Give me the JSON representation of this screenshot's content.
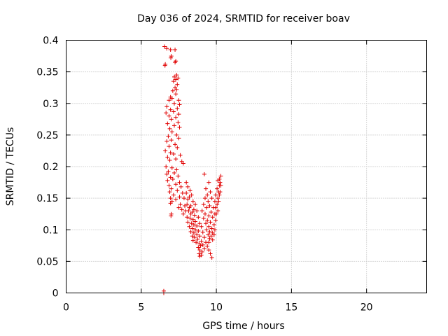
{
  "chart_data": {
    "type": "scatter",
    "title": "Day 036 of 2024, SRMTID for receiver boav",
    "xlabel": "GPS time / hours",
    "ylabel": "SRMTID / TECUs",
    "xlim": [
      0,
      24
    ],
    "ylim": [
      0,
      0.4
    ],
    "xticks": [
      0,
      5,
      10,
      15,
      20
    ],
    "xtick_labels": [
      "0",
      "5",
      "10",
      "15",
      "20"
    ],
    "yticks": [
      0,
      0.05,
      0.1,
      0.15,
      0.2,
      0.25,
      0.3,
      0.35,
      0.4
    ],
    "ytick_labels": [
      "0",
      "0.05",
      "0.1",
      "0.15",
      "0.2",
      "0.25",
      "0.3",
      "0.35",
      "0.4"
    ],
    "grid": true,
    "marker": "+",
    "color": "#e00000",
    "series": [
      {
        "name": "SRMTID",
        "points": [
          [
            6.5,
            0.0
          ],
          [
            6.5,
            0.003
          ],
          [
            6.55,
            0.39
          ],
          [
            6.7,
            0.387
          ],
          [
            6.95,
            0.385
          ],
          [
            7.25,
            0.385
          ],
          [
            7.0,
            0.375
          ],
          [
            6.97,
            0.372
          ],
          [
            7.3,
            0.367
          ],
          [
            7.25,
            0.365
          ],
          [
            6.6,
            0.362
          ],
          [
            6.58,
            0.36
          ],
          [
            7.35,
            0.345
          ],
          [
            7.2,
            0.342
          ],
          [
            7.45,
            0.34
          ],
          [
            7.3,
            0.338
          ],
          [
            7.15,
            0.335
          ],
          [
            7.4,
            0.33
          ],
          [
            7.25,
            0.325
          ],
          [
            7.35,
            0.322
          ],
          [
            7.1,
            0.32
          ],
          [
            7.3,
            0.315
          ],
          [
            6.95,
            0.31
          ],
          [
            7.05,
            0.308
          ],
          [
            6.85,
            0.305
          ],
          [
            7.5,
            0.305
          ],
          [
            7.2,
            0.3
          ],
          [
            7.55,
            0.298
          ],
          [
            6.7,
            0.295
          ],
          [
            7.4,
            0.292
          ],
          [
            6.95,
            0.29
          ],
          [
            7.15,
            0.287
          ],
          [
            6.65,
            0.285
          ],
          [
            7.5,
            0.283
          ],
          [
            6.85,
            0.28
          ],
          [
            7.3,
            0.278
          ],
          [
            7.0,
            0.275
          ],
          [
            7.45,
            0.27
          ],
          [
            6.75,
            0.268
          ],
          [
            7.2,
            0.265
          ],
          [
            7.55,
            0.262
          ],
          [
            6.9,
            0.26
          ],
          [
            7.05,
            0.255
          ],
          [
            7.35,
            0.25
          ],
          [
            6.8,
            0.248
          ],
          [
            7.5,
            0.245
          ],
          [
            7.0,
            0.242
          ],
          [
            6.7,
            0.24
          ],
          [
            7.25,
            0.235
          ],
          [
            6.85,
            0.232
          ],
          [
            7.4,
            0.23
          ],
          [
            6.6,
            0.225
          ],
          [
            6.95,
            0.222
          ],
          [
            7.15,
            0.22
          ],
          [
            7.6,
            0.218
          ],
          [
            6.75,
            0.215
          ],
          [
            7.3,
            0.212
          ],
          [
            6.9,
            0.21
          ],
          [
            7.7,
            0.208
          ],
          [
            7.8,
            0.205
          ],
          [
            6.65,
            0.2
          ],
          [
            7.05,
            0.198
          ],
          [
            7.35,
            0.195
          ],
          [
            6.8,
            0.192
          ],
          [
            7.2,
            0.19
          ],
          [
            6.7,
            0.188
          ],
          [
            7.45,
            0.185
          ],
          [
            6.95,
            0.183
          ],
          [
            7.1,
            0.18
          ],
          [
            6.75,
            0.178
          ],
          [
            7.55,
            0.175
          ],
          [
            7.3,
            0.172
          ],
          [
            6.85,
            0.17
          ],
          [
            7.65,
            0.168
          ],
          [
            7.0,
            0.165
          ],
          [
            7.4,
            0.162
          ],
          [
            6.9,
            0.16
          ],
          [
            7.75,
            0.158
          ],
          [
            7.15,
            0.155
          ],
          [
            7.55,
            0.152
          ],
          [
            6.95,
            0.15
          ],
          [
            7.85,
            0.15
          ],
          [
            7.3,
            0.148
          ],
          [
            7.05,
            0.145
          ],
          [
            6.95,
            0.142
          ],
          [
            7.6,
            0.14
          ],
          [
            7.9,
            0.138
          ],
          [
            7.5,
            0.135
          ],
          [
            7.7,
            0.132
          ],
          [
            7.95,
            0.13
          ],
          [
            7.0,
            0.125
          ],
          [
            6.98,
            0.122
          ],
          [
            7.8,
            0.125
          ],
          [
            8.0,
            0.175
          ],
          [
            8.1,
            0.168
          ],
          [
            8.25,
            0.162
          ],
          [
            8.0,
            0.158
          ],
          [
            8.2,
            0.152
          ],
          [
            8.35,
            0.155
          ],
          [
            8.1,
            0.148
          ],
          [
            8.45,
            0.145
          ],
          [
            8.05,
            0.14
          ],
          [
            8.3,
            0.138
          ],
          [
            8.6,
            0.14
          ],
          [
            8.2,
            0.135
          ],
          [
            8.5,
            0.132
          ],
          [
            8.15,
            0.13
          ],
          [
            8.4,
            0.128
          ],
          [
            8.7,
            0.13
          ],
          [
            8.3,
            0.125
          ],
          [
            8.55,
            0.123
          ],
          [
            8.05,
            0.12
          ],
          [
            8.25,
            0.118
          ],
          [
            8.8,
            0.12
          ],
          [
            8.45,
            0.116
          ],
          [
            8.6,
            0.113
          ],
          [
            8.1,
            0.112
          ],
          [
            8.35,
            0.11
          ],
          [
            8.9,
            0.11
          ],
          [
            8.5,
            0.108
          ],
          [
            8.7,
            0.106
          ],
          [
            8.2,
            0.105
          ],
          [
            8.4,
            0.102
          ],
          [
            9.0,
            0.105
          ],
          [
            8.6,
            0.1
          ],
          [
            8.8,
            0.098
          ],
          [
            8.3,
            0.097
          ],
          [
            8.5,
            0.095
          ],
          [
            9.1,
            0.096
          ],
          [
            8.7,
            0.093
          ],
          [
            8.4,
            0.09
          ],
          [
            8.9,
            0.09
          ],
          [
            8.55,
            0.088
          ],
          [
            9.2,
            0.088
          ],
          [
            8.75,
            0.085
          ],
          [
            8.45,
            0.083
          ],
          [
            9.0,
            0.082
          ],
          [
            8.65,
            0.08
          ],
          [
            9.3,
            0.08
          ],
          [
            8.85,
            0.078
          ],
          [
            9.1,
            0.076
          ],
          [
            8.95,
            0.075
          ],
          [
            8.8,
            0.072
          ],
          [
            9.4,
            0.074
          ],
          [
            9.2,
            0.07
          ],
          [
            8.9,
            0.068
          ],
          [
            9.5,
            0.068
          ],
          [
            9.05,
            0.065
          ],
          [
            8.85,
            0.062
          ],
          [
            9.6,
            0.062
          ],
          [
            8.9,
            0.058
          ],
          [
            9.7,
            0.056
          ],
          [
            9.0,
            0.06
          ],
          [
            9.2,
            0.188
          ],
          [
            9.5,
            0.175
          ],
          [
            9.3,
            0.165
          ],
          [
            9.6,
            0.16
          ],
          [
            9.4,
            0.155
          ],
          [
            9.25,
            0.15
          ],
          [
            9.7,
            0.15
          ],
          [
            9.45,
            0.145
          ],
          [
            9.15,
            0.14
          ],
          [
            9.55,
            0.138
          ],
          [
            9.35,
            0.135
          ],
          [
            9.8,
            0.135
          ],
          [
            9.05,
            0.13
          ],
          [
            9.65,
            0.128
          ],
          [
            9.25,
            0.125
          ],
          [
            9.9,
            0.125
          ],
          [
            9.5,
            0.122
          ],
          [
            9.75,
            0.12
          ],
          [
            9.15,
            0.118
          ],
          [
            9.4,
            0.115
          ],
          [
            9.95,
            0.115
          ],
          [
            9.6,
            0.112
          ],
          [
            9.3,
            0.11
          ],
          [
            9.85,
            0.108
          ],
          [
            9.5,
            0.105
          ],
          [
            9.7,
            0.102
          ],
          [
            9.35,
            0.1
          ],
          [
            9.9,
            0.1
          ],
          [
            9.55,
            0.097
          ],
          [
            9.75,
            0.095
          ],
          [
            9.45,
            0.092
          ],
          [
            9.65,
            0.09
          ],
          [
            9.85,
            0.092
          ],
          [
            9.55,
            0.086
          ],
          [
            9.75,
            0.084
          ],
          [
            9.5,
            0.08
          ],
          [
            9.95,
            0.135
          ],
          [
            10.05,
            0.14
          ],
          [
            10.1,
            0.15
          ],
          [
            10.15,
            0.16
          ],
          [
            10.2,
            0.17
          ],
          [
            10.25,
            0.175
          ],
          [
            10.2,
            0.18
          ],
          [
            10.3,
            0.185
          ],
          [
            10.05,
            0.165
          ],
          [
            10.15,
            0.145
          ],
          [
            9.95,
            0.155
          ],
          [
            10.25,
            0.16
          ],
          [
            10.1,
            0.13
          ],
          [
            10.0,
            0.125
          ],
          [
            10.3,
            0.17
          ],
          [
            10.2,
            0.155
          ],
          [
            9.9,
            0.145
          ],
          [
            10.1,
            0.178
          ]
        ]
      }
    ]
  }
}
